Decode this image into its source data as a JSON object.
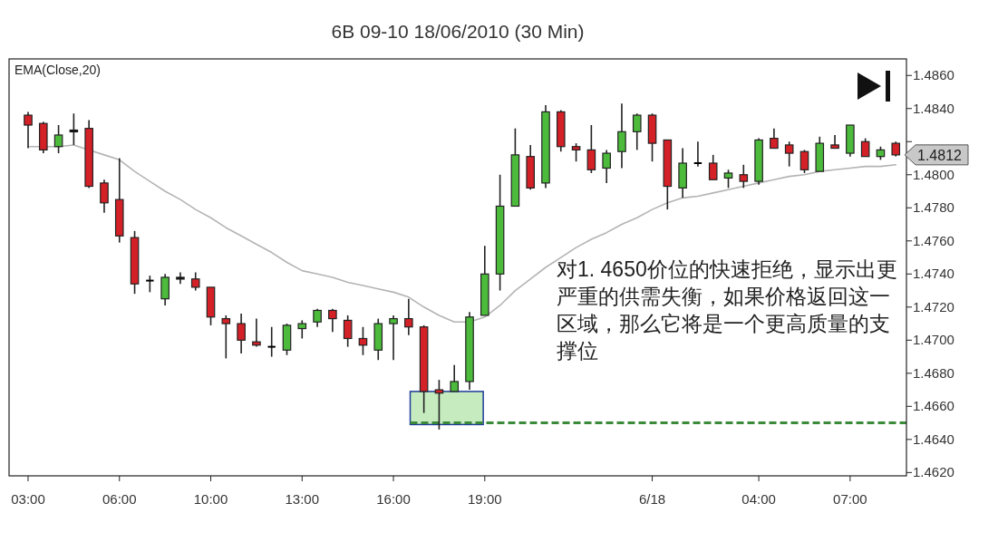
{
  "chart_data": {
    "type": "candlestick",
    "title": "6B 09-10  18/06/2010 (30 Min)",
    "categories": [
      "03:00",
      null,
      null,
      null,
      null,
      null,
      "06:00",
      null,
      null,
      null,
      null,
      null,
      "10:00",
      null,
      null,
      null,
      null,
      null,
      "13:00",
      null,
      null,
      null,
      null,
      null,
      "16:00",
      null,
      null,
      null,
      null,
      null,
      "19:00",
      null,
      null,
      null,
      null,
      null,
      null,
      null,
      null,
      null,
      null,
      "6/18",
      null,
      null,
      null,
      null,
      null,
      null,
      "04:00",
      null,
      null,
      null,
      null,
      null,
      "07:00",
      null,
      null,
      null
    ],
    "ohlc": [
      [
        1.4836,
        1.4838,
        1.4816,
        1.483
      ],
      [
        1.4831,
        1.4832,
        1.4813,
        1.4815
      ],
      [
        1.4817,
        1.483,
        1.4813,
        1.4824
      ],
      [
        1.4827,
        1.4837,
        1.4818,
        1.4826
      ],
      [
        1.4828,
        1.4833,
        1.4792,
        1.4793
      ],
      [
        1.4795,
        1.4797,
        1.4777,
        1.4783
      ],
      [
        1.4785,
        1.481,
        1.4759,
        1.4763
      ],
      [
        1.4762,
        1.4766,
        1.4728,
        1.4734
      ],
      [
        1.4736,
        1.4739,
        1.4729,
        1.4736
      ],
      [
        1.4725,
        1.474,
        1.4721,
        1.4738
      ],
      [
        1.4738,
        1.4741,
        1.4734,
        1.4737
      ],
      [
        1.4737,
        1.4741,
        1.473,
        1.4732
      ],
      [
        1.4732,
        1.4732,
        1.4709,
        1.4714
      ],
      [
        1.4713,
        1.4715,
        1.4689,
        1.471
      ],
      [
        1.471,
        1.4716,
        1.4692,
        1.47
      ],
      [
        1.4699,
        1.4713,
        1.4696,
        1.4697
      ],
      [
        1.4696,
        1.4708,
        1.469,
        1.4696
      ],
      [
        1.4694,
        1.471,
        1.4691,
        1.4709
      ],
      [
        1.4707,
        1.4712,
        1.4701,
        1.471
      ],
      [
        1.4711,
        1.4719,
        1.4708,
        1.4718
      ],
      [
        1.4718,
        1.4719,
        1.4705,
        1.4713
      ],
      [
        1.4712,
        1.4715,
        1.4696,
        1.4701
      ],
      [
        1.4701,
        1.4708,
        1.4691,
        1.4697
      ],
      [
        1.4694,
        1.4713,
        1.4688,
        1.471
      ],
      [
        1.471,
        1.4715,
        1.4688,
        1.4713
      ],
      [
        1.4713,
        1.4725,
        1.4703,
        1.4708
      ],
      [
        1.4708,
        1.4709,
        1.4656,
        1.4669
      ],
      [
        1.467,
        1.4676,
        1.4646,
        1.4668
      ],
      [
        1.4669,
        1.4685,
        1.4669,
        1.4675
      ],
      [
        1.4675,
        1.4717,
        1.467,
        1.4714
      ],
      [
        1.4715,
        1.4757,
        1.4715,
        1.474
      ],
      [
        1.474,
        1.48,
        1.473,
        1.4781
      ],
      [
        1.4781,
        1.4828,
        1.4781,
        1.4812
      ],
      [
        1.4811,
        1.4818,
        1.4791,
        1.4792
      ],
      [
        1.4795,
        1.4842,
        1.4792,
        1.4838
      ],
      [
        1.4838,
        1.4839,
        1.4814,
        1.4817
      ],
      [
        1.4817,
        1.4819,
        1.4808,
        1.4815
      ],
      [
        1.4815,
        1.483,
        1.4801,
        1.4803
      ],
      [
        1.4804,
        1.4815,
        1.4795,
        1.4813
      ],
      [
        1.4814,
        1.4843,
        1.4804,
        1.4826
      ],
      [
        1.4826,
        1.4837,
        1.4815,
        1.4836
      ],
      [
        1.4836,
        1.4837,
        1.4808,
        1.4819
      ],
      [
        1.4821,
        1.4821,
        1.4779,
        1.4793
      ],
      [
        1.4792,
        1.4816,
        1.4786,
        1.4807
      ],
      [
        1.4807,
        1.482,
        1.4805,
        1.4807
      ],
      [
        1.4807,
        1.4812,
        1.4797,
        1.4797
      ],
      [
        1.4798,
        1.4803,
        1.4792,
        1.4801
      ],
      [
        1.48,
        1.4806,
        1.4792,
        1.4796
      ],
      [
        1.4796,
        1.4822,
        1.4794,
        1.4821
      ],
      [
        1.4822,
        1.4828,
        1.4816,
        1.4816
      ],
      [
        1.4818,
        1.482,
        1.4805,
        1.4813
      ],
      [
        1.4814,
        1.4815,
        1.4801,
        1.4803
      ],
      [
        1.4802,
        1.4823,
        1.4802,
        1.4819
      ],
      [
        1.4818,
        1.4824,
        1.4816,
        1.4816
      ],
      [
        1.4813,
        1.483,
        1.4811,
        1.483
      ],
      [
        1.482,
        1.4822,
        1.4811,
        1.4811
      ],
      [
        1.4811,
        1.4817,
        1.4809,
        1.4815
      ],
      [
        1.4819,
        1.482,
        1.4811,
        1.4812
      ]
    ],
    "colors": [
      "#d42027",
      "#d42027",
      "#4cbb3c",
      "#000000",
      "#d42027",
      "#d42027",
      "#d42027",
      "#d42027",
      "#000000",
      "#4cbb3c",
      "#000000",
      "#d42027",
      "#d42027",
      "#d42027",
      "#d42027",
      "#d42027",
      "#000000",
      "#4cbb3c",
      "#4cbb3c",
      "#4cbb3c",
      "#d42027",
      "#d42027",
      "#d42027",
      "#4cbb3c",
      "#4cbb3c",
      "#d42027",
      "#d42027",
      "#d42027",
      "#4cbb3c",
      "#4cbb3c",
      "#4cbb3c",
      "#4cbb3c",
      "#4cbb3c",
      "#d42027",
      "#4cbb3c",
      "#d42027",
      "#d42027",
      "#d42027",
      "#4cbb3c",
      "#4cbb3c",
      "#4cbb3c",
      "#d42027",
      "#d42027",
      "#4cbb3c",
      "#000000",
      "#d42027",
      "#4cbb3c",
      "#d42027",
      "#4cbb3c",
      "#d42027",
      "#d42027",
      "#d42027",
      "#4cbb3c",
      "#d42027",
      "#4cbb3c",
      "#d42027",
      "#4cbb3c",
      "#d42027"
    ],
    "series": [
      {
        "type": "line",
        "color": "#b4b4b4",
        "values": [
          1.4817,
          1.4817,
          1.4817,
          1.4818,
          1.4815,
          1.4812,
          1.4809,
          1.4802,
          1.4796,
          1.479,
          1.4785,
          1.4779,
          1.4774,
          1.4768,
          1.4763,
          1.4758,
          1.4753,
          1.4747,
          1.4742,
          1.474,
          1.4738,
          1.4735,
          1.4733,
          1.4731,
          1.4729,
          1.4726,
          1.472,
          1.4715,
          1.4711,
          1.4711,
          1.4714,
          1.4721,
          1.473,
          1.4737,
          1.4744,
          1.475,
          1.4756,
          1.4761,
          1.4765,
          1.477,
          1.4774,
          1.4779,
          1.4783,
          1.4786,
          1.4787,
          1.4789,
          1.4791,
          1.4793,
          1.4795,
          1.4797,
          1.4799,
          1.48,
          1.4802,
          1.4803,
          1.4804,
          1.4805,
          1.4805,
          1.4806
        ]
      }
    ],
    "ylim": [
      1.4618,
      1.487
    ],
    "yticks": [
      {
        "value": 1.462,
        "label": "1.4620"
      },
      {
        "value": 1.464,
        "label": "1.4640"
      },
      {
        "value": 1.466,
        "label": "1.4660"
      },
      {
        "value": 1.468,
        "label": "1.4680"
      },
      {
        "value": 1.47,
        "label": "1.4700"
      },
      {
        "value": 1.472,
        "label": "1.4720"
      },
      {
        "value": 1.474,
        "label": "1.4740"
      },
      {
        "value": 1.476,
        "label": "1.4760"
      },
      {
        "value": 1.478,
        "label": "1.4780"
      },
      {
        "value": 1.48,
        "label": "1.4800"
      },
      {
        "value": 1.482,
        "label": null
      },
      {
        "value": 1.484,
        "label": "1.4840"
      },
      {
        "value": 1.486,
        "label": "1.4860"
      }
    ],
    "bands": [
      {
        "axis": "y",
        "from": 1.4649,
        "to": 1.4669,
        "color": "#c6ebbf"
      }
    ],
    "ref_lines": [
      {
        "axis": "y",
        "value": 1.465,
        "color": "#3a8a3a",
        "line_style": "dashed"
      }
    ],
    "annotations": [
      "EMA(Close,20)",
      "对1. 4650价位的快速拒绝，显示出更严重的供需失衡，如果价格返回这一区域，那么它将是一个更高质量的支撑位",
      "1.4812"
    ],
    "grid": false
  }
}
